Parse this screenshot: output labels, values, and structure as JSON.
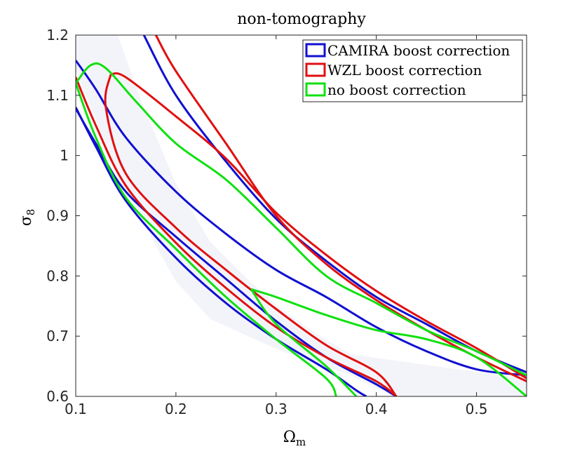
{
  "chart_data": {
    "type": "contour",
    "title": "non-tomography",
    "xlabel": "Ω",
    "xlabel_sub": "m",
    "ylabel": "σ",
    "ylabel_sub": "8",
    "xlim": [
      0.1,
      0.55
    ],
    "ylim": [
      0.6,
      1.2
    ],
    "x_ticks": [
      0.1,
      0.2,
      0.3,
      0.4,
      0.5
    ],
    "y_ticks": [
      0.6,
      0.7,
      0.8,
      0.9,
      1.0,
      1.1,
      1.2
    ],
    "x_tick_labels": [
      "0.1",
      "0.2",
      "0.3",
      "0.4",
      "0.5"
    ],
    "y_tick_labels": [
      "0.6",
      "0.7",
      "0.8",
      "0.9",
      "1",
      "1.1",
      "1.2"
    ],
    "legend_position": "top-right",
    "series": [
      {
        "name": "CAMIRA boost correction",
        "color": "#1010d0",
        "contours": [
          [
            [
              0.1,
              1.158
            ],
            [
              0.12,
              1.11
            ],
            [
              0.15,
              1.03
            ],
            [
              0.2,
              0.94
            ],
            [
              0.25,
              0.87
            ],
            [
              0.3,
              0.81
            ],
            [
              0.35,
              0.765
            ],
            [
              0.4,
              0.715
            ],
            [
              0.45,
              0.675
            ],
            [
              0.5,
              0.645
            ],
            [
              0.55,
              0.635
            ]
          ],
          [
            [
              0.168,
              1.2
            ],
            [
              0.2,
              1.1
            ],
            [
              0.25,
              0.99
            ],
            [
              0.3,
              0.895
            ],
            [
              0.35,
              0.825
            ],
            [
              0.4,
              0.765
            ],
            [
              0.45,
              0.72
            ],
            [
              0.5,
              0.675
            ],
            [
              0.55,
              0.64
            ]
          ],
          [
            [
              0.1,
              1.078
            ],
            [
              0.12,
              1.02
            ],
            [
              0.15,
              0.94
            ],
            [
              0.2,
              0.865
            ],
            [
              0.25,
              0.795
            ],
            [
              0.3,
              0.725
            ],
            [
              0.35,
              0.665
            ],
            [
              0.4,
              0.62
            ],
            [
              0.42,
              0.6
            ]
          ],
          [
            [
              0.1,
              1.08
            ],
            [
              0.12,
              1.015
            ],
            [
              0.15,
              0.925
            ],
            [
              0.2,
              0.83
            ],
            [
              0.25,
              0.755
            ],
            [
              0.3,
              0.695
            ],
            [
              0.35,
              0.645
            ],
            [
              0.38,
              0.61
            ],
            [
              0.39,
              0.6
            ]
          ]
        ]
      },
      {
        "name": "WZL boost correction",
        "color": "#e01010",
        "contours": [
          [
            [
              0.135,
              1.135
            ],
            [
              0.15,
              1.13
            ],
            [
              0.2,
              1.065
            ],
            [
              0.25,
              0.995
            ],
            [
              0.3,
              0.905
            ],
            [
              0.35,
              0.835
            ],
            [
              0.4,
              0.775
            ],
            [
              0.45,
              0.725
            ],
            [
              0.5,
              0.68
            ],
            [
              0.55,
              0.63
            ]
          ],
          [
            [
              0.18,
              1.2
            ],
            [
              0.2,
              1.14
            ],
            [
              0.25,
              1.02
            ],
            [
              0.3,
              0.9
            ],
            [
              0.35,
              0.82
            ],
            [
              0.4,
              0.76
            ],
            [
              0.45,
              0.71
            ],
            [
              0.5,
              0.665
            ],
            [
              0.55,
              0.625
            ]
          ],
          [
            [
              0.135,
              1.135
            ],
            [
              0.13,
              1.08
            ],
            [
              0.15,
              0.97
            ],
            [
              0.2,
              0.88
            ],
            [
              0.25,
              0.81
            ],
            [
              0.3,
              0.745
            ],
            [
              0.35,
              0.685
            ],
            [
              0.4,
              0.64
            ],
            [
              0.42,
              0.6
            ]
          ],
          [
            [
              0.1,
              1.13
            ],
            [
              0.12,
              1.05
            ],
            [
              0.15,
              0.95
            ],
            [
              0.2,
              0.855
            ],
            [
              0.25,
              0.78
            ],
            [
              0.3,
              0.715
            ],
            [
              0.35,
              0.665
            ],
            [
              0.4,
              0.625
            ],
            [
              0.42,
              0.6
            ]
          ]
        ]
      },
      {
        "name": "no boost correction",
        "color": "#10e010",
        "contours": [
          [
            [
              0.1,
              1.12
            ],
            [
              0.115,
              1.15
            ],
            [
              0.13,
              1.145
            ],
            [
              0.16,
              1.09
            ],
            [
              0.2,
              1.02
            ],
            [
              0.25,
              0.96
            ],
            [
              0.3,
              0.88
            ],
            [
              0.35,
              0.8
            ],
            [
              0.4,
              0.755
            ],
            [
              0.45,
              0.71
            ],
            [
              0.5,
              0.675
            ],
            [
              0.55,
              0.635
            ]
          ],
          [
            [
              0.1,
              1.12
            ],
            [
              0.12,
              1.03
            ],
            [
              0.15,
              0.93
            ],
            [
              0.2,
              0.845
            ],
            [
              0.25,
              0.765
            ],
            [
              0.3,
              0.695
            ],
            [
              0.35,
              0.63
            ],
            [
              0.36,
              0.6
            ]
          ],
          [
            [
              0.275,
              0.778
            ],
            [
              0.3,
              0.765
            ],
            [
              0.35,
              0.735
            ],
            [
              0.4,
              0.71
            ],
            [
              0.45,
              0.695
            ],
            [
              0.5,
              0.665
            ],
            [
              0.55,
              0.6
            ]
          ],
          [
            [
              0.275,
              0.778
            ],
            [
              0.3,
              0.72
            ],
            [
              0.35,
              0.65
            ],
            [
              0.38,
              0.6
            ]
          ]
        ]
      }
    ]
  }
}
